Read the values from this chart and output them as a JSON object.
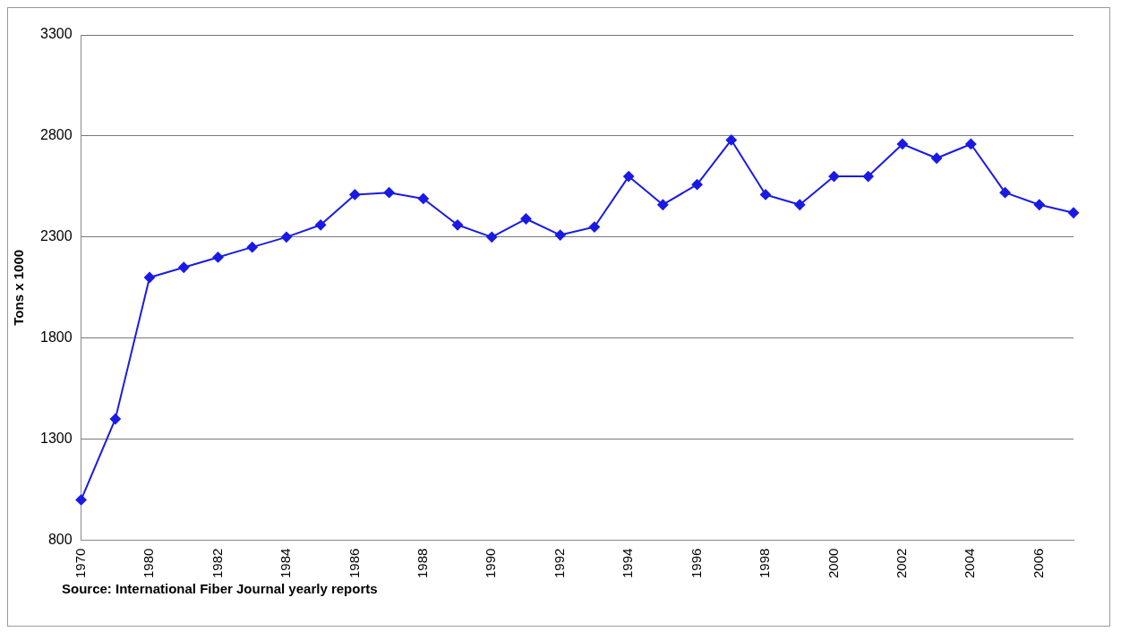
{
  "chart_data": {
    "type": "line",
    "ylabel": "Tons x 1000",
    "categories": [
      "1970",
      null,
      "1980",
      null,
      "1982",
      null,
      "1984",
      null,
      "1986",
      null,
      "1988",
      null,
      "1990",
      null,
      "1992",
      null,
      "1994",
      null,
      "1996",
      null,
      "1998",
      null,
      "2000",
      null,
      "2002",
      null,
      "2004",
      null,
      "2006",
      null
    ],
    "series": [
      {
        "color": "#1a1ae6",
        "values": [
          1000,
          1400,
          2100,
          2150,
          2200,
          2250,
          2300,
          2360,
          2510,
          2520,
          2490,
          2360,
          2300,
          2390,
          2310,
          2350,
          2600,
          2460,
          2560,
          2780,
          2510,
          2460,
          2600,
          2600,
          2760,
          2690,
          2760,
          2520,
          2460,
          2420
        ]
      }
    ],
    "ylim": [
      800,
      3300
    ],
    "yticks": [
      800,
      1300,
      1800,
      2300,
      2800,
      3300
    ],
    "grid": "y",
    "legend": false,
    "marker": "diamond",
    "line_style": "solid",
    "annotations": [
      "Source: International Fiber Journal yearly reports"
    ]
  }
}
